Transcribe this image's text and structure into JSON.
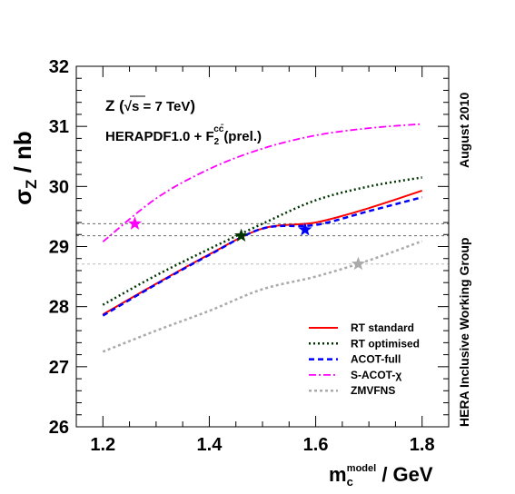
{
  "chart_data": {
    "type": "line",
    "ylabel_main": "σ",
    "ylabel_sub": "Z",
    "ylabel_unit": " / nb",
    "xlabel_main": "m",
    "xlabel_sub": "c",
    "xlabel_sup": "model",
    "xlabel_unit": " / GeV",
    "xlim": [
      1.15,
      1.85
    ],
    "ylim": [
      26,
      32
    ],
    "xticks": [
      1.2,
      1.4,
      1.6,
      1.8
    ],
    "yticks": [
      26,
      27,
      28,
      29,
      30,
      31,
      32
    ],
    "annotation_line1_prefix": "Z (",
    "annotation_line1_sqrt": "√s = 7 TeV",
    "annotation_line1_suffix": ")",
    "annotation_line2_prefix": "HERAPDF1.0 + F",
    "annotation_line2_sub": "2",
    "annotation_line2_sup": "cc̄",
    "annotation_line2_suffix": "(prel.)",
    "side_label_top": "August 2010",
    "side_label_bottom": "HERA Inclusive Working Group",
    "legend_position": "bottom-right",
    "hlines": [
      {
        "y": 29.38,
        "color": "#666666"
      },
      {
        "y": 29.18,
        "color": "#666666"
      },
      {
        "y": 28.71,
        "color": "#bbbbbb"
      }
    ],
    "series": [
      {
        "name": "RT standard",
        "color": "#ff0000",
        "dash": "",
        "width": 2,
        "x": [
          1.2,
          1.3,
          1.4,
          1.5,
          1.6,
          1.7,
          1.8
        ],
        "y": [
          27.87,
          28.38,
          28.87,
          29.3,
          29.4,
          29.64,
          29.93
        ]
      },
      {
        "name": "RT optimised",
        "color": "#003300",
        "dash": "2,3",
        "width": 2.5,
        "x": [
          1.2,
          1.3,
          1.4,
          1.5,
          1.6,
          1.7,
          1.8
        ],
        "y": [
          28.03,
          28.52,
          28.96,
          29.38,
          29.77,
          30.0,
          30.15
        ]
      },
      {
        "name": "ACOT-full",
        "color": "#0000ff",
        "dash": "6,4",
        "width": 2.5,
        "x": [
          1.2,
          1.3,
          1.4,
          1.5,
          1.6,
          1.7,
          1.8
        ],
        "y": [
          27.85,
          28.37,
          28.86,
          29.3,
          29.36,
          29.59,
          29.82
        ]
      },
      {
        "name": "S-ACOT-χ",
        "color": "#ff00ff",
        "dash": "8,3,2,3",
        "width": 1.8,
        "x": [
          1.2,
          1.3,
          1.4,
          1.5,
          1.6,
          1.7,
          1.8
        ],
        "y": [
          29.08,
          29.8,
          30.29,
          30.63,
          30.85,
          30.97,
          31.04
        ]
      },
      {
        "name": "ZMVFNS",
        "color": "#aaaaaa",
        "dash": "3,3",
        "width": 2.5,
        "x": [
          1.2,
          1.3,
          1.4,
          1.5,
          1.6,
          1.7,
          1.8
        ],
        "y": [
          27.25,
          27.6,
          27.93,
          28.29,
          28.5,
          28.77,
          29.09
        ]
      }
    ],
    "star_markers": [
      {
        "series": "S-ACOT-χ",
        "x": 1.26,
        "y": 29.38,
        "color": "#ff00ff"
      },
      {
        "series": "RT optimised",
        "x": 1.46,
        "y": 29.18,
        "color": "#003300"
      },
      {
        "series": "ACOT-full",
        "x": 1.58,
        "y": 29.28,
        "color": "#0000ff"
      },
      {
        "series": "ZMVFNS",
        "x": 1.68,
        "y": 28.71,
        "color": "#aaaaaa"
      }
    ]
  }
}
